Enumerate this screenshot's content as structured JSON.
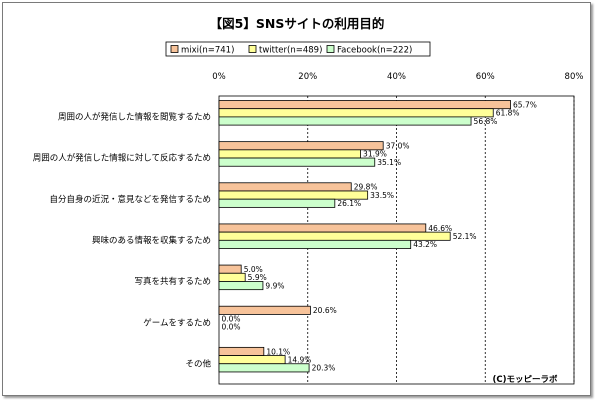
{
  "chart_data": {
    "type": "bar",
    "orientation": "horizontal",
    "title": "【図5】SNSサイトの利用目的",
    "categories": [
      "周囲の人が発信した情報を閲覧するため",
      "周囲の人が発信した情報に対して反応するため",
      "自分自身の近況・意見などを発信するため",
      "興味のある情報を収集するため",
      "写真を共有するため",
      "ゲームをするため",
      "その他"
    ],
    "series": [
      {
        "name": "mixi(n=741)",
        "color": "#f7c39a",
        "values": [
          65.7,
          37.0,
          29.8,
          46.6,
          5.0,
          20.6,
          10.1
        ]
      },
      {
        "name": "twitter(n=489)",
        "color": "#ffff99",
        "values": [
          61.8,
          31.9,
          33.5,
          52.1,
          5.9,
          0.0,
          14.9
        ]
      },
      {
        "name": "Facebook(n=222)",
        "color": "#ccffcc",
        "values": [
          56.8,
          35.1,
          26.1,
          43.2,
          9.9,
          0.0,
          20.3
        ]
      }
    ],
    "value_labels": [
      [
        "65.7%",
        "37.0%",
        "29.8%",
        "46.6%",
        "5.0%",
        "20.6%",
        "10.1%"
      ],
      [
        "61.8%",
        "31.9%",
        "33.5%",
        "52.1%",
        "5.9%",
        "0.0%",
        "14.9%"
      ],
      [
        "56.8%",
        "35.1%",
        "26.1%",
        "43.2%",
        "9.9%",
        "0.0%",
        "20.3%"
      ]
    ],
    "xlim": [
      0,
      80
    ],
    "ticks": [
      0,
      20,
      40,
      60,
      80
    ],
    "tick_labels": [
      "0%",
      "20%",
      "40%",
      "60%",
      "80%"
    ],
    "grid": "vertical dashed",
    "legend": "top-center",
    "credit": "(C)モッピーラボ"
  }
}
